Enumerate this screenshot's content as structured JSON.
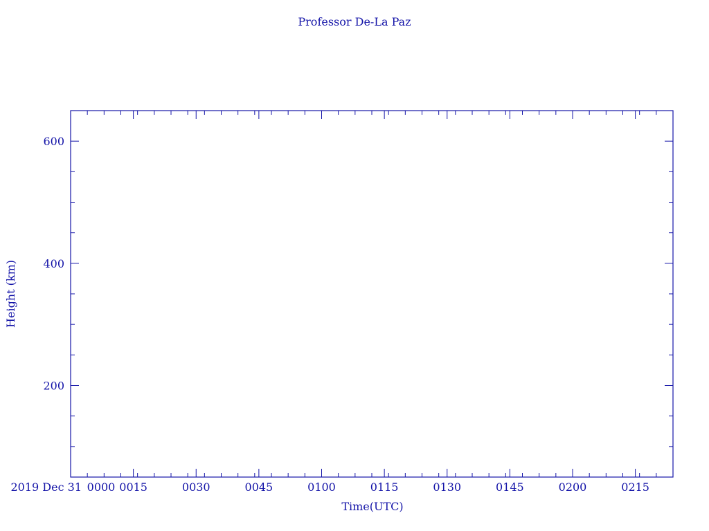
{
  "colors": {
    "ink": "#1414a8",
    "background": "#ffffff"
  },
  "chart_data": {
    "type": "line",
    "title": "Professor De-La Paz",
    "xlabel": "Time(UTC)",
    "ylabel": "Height (km)",
    "date_label": "2019 Dec 31",
    "xlim": [
      "00:00",
      "02:24"
    ],
    "ylim": [
      50,
      650
    ],
    "x_ticks": [
      "0000",
      "0015",
      "0030",
      "0045",
      "0100",
      "0115",
      "0130",
      "0145",
      "0200",
      "0215"
    ],
    "y_ticks": [
      "200",
      "400",
      "600"
    ],
    "series": [],
    "grid": false
  }
}
